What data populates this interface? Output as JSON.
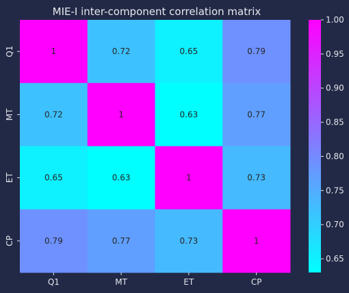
{
  "chart_data": {
    "type": "heatmap",
    "title": "MIE-I inter-component correlation matrix",
    "x_categories": [
      "Q1",
      "MT",
      "ET",
      "CP"
    ],
    "y_categories": [
      "Q1",
      "MT",
      "ET",
      "CP"
    ],
    "values": [
      [
        1.0,
        0.72,
        0.65,
        0.79
      ],
      [
        0.72,
        1.0,
        0.63,
        0.77
      ],
      [
        0.65,
        0.63,
        1.0,
        0.73
      ],
      [
        0.79,
        0.77,
        0.73,
        1.0
      ]
    ],
    "annotations": [
      [
        "1",
        "0.72",
        "0.65",
        "0.79"
      ],
      [
        "0.72",
        "1",
        "0.63",
        "0.77"
      ],
      [
        "0.65",
        "0.63",
        "1",
        "0.73"
      ],
      [
        "0.79",
        "0.77",
        "0.73",
        "1"
      ]
    ],
    "colormap": "cool",
    "color_range": [
      0.63,
      1.0
    ],
    "colorbar_ticks": [
      "0.65",
      "0.70",
      "0.75",
      "0.80",
      "0.85",
      "0.90",
      "0.95",
      "1.00"
    ],
    "colorbar_tick_values": [
      0.65,
      0.7,
      0.75,
      0.8,
      0.85,
      0.9,
      0.95,
      1.0
    ],
    "grid": false,
    "legend": "colorbar-right"
  },
  "colors": {
    "background": "#222946",
    "text": "#e3e5ec",
    "annotation_text": "#262626",
    "cmap_low": "#00ffff",
    "cmap_high": "#ff00ff"
  }
}
